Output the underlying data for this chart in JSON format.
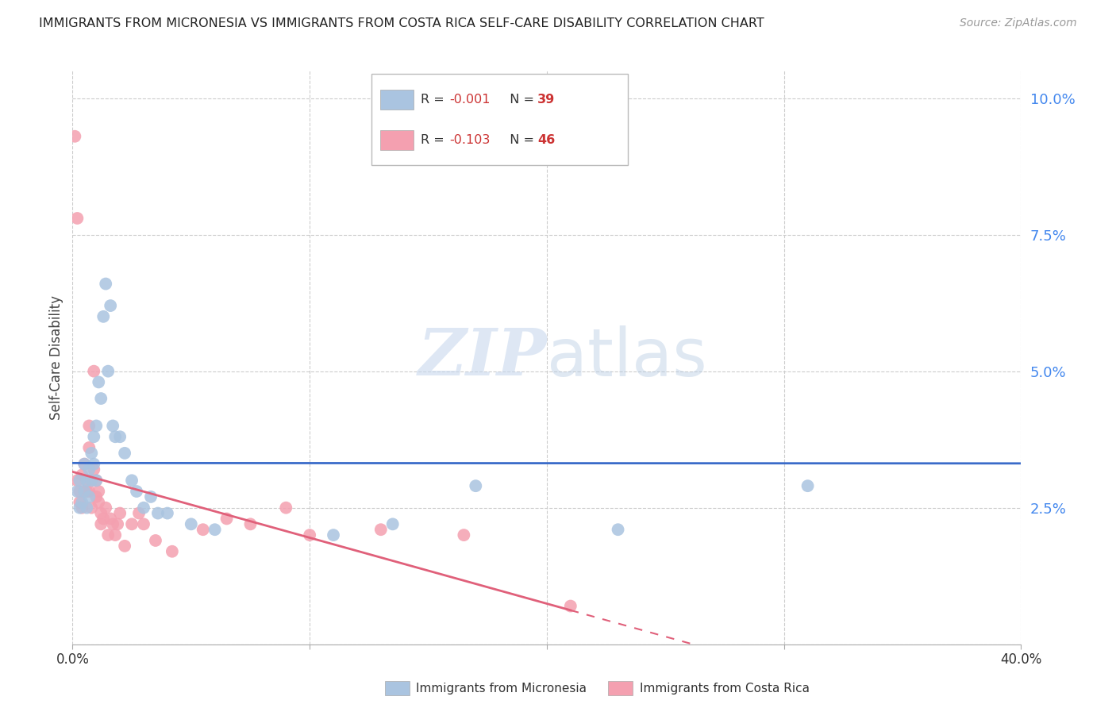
{
  "title": "IMMIGRANTS FROM MICRONESIA VS IMMIGRANTS FROM COSTA RICA SELF-CARE DISABILITY CORRELATION CHART",
  "source": "Source: ZipAtlas.com",
  "ylabel": "Self-Care Disability",
  "xlim": [
    0.0,
    0.4
  ],
  "ylim": [
    0.0,
    0.105
  ],
  "yticks": [
    0.0,
    0.025,
    0.05,
    0.075,
    0.1
  ],
  "ytick_labels": [
    "",
    "2.5%",
    "5.0%",
    "7.5%",
    "10.0%"
  ],
  "xticks": [
    0.0,
    0.1,
    0.2,
    0.3,
    0.4
  ],
  "xtick_labels": [
    "0.0%",
    "",
    "",
    "",
    "40.0%"
  ],
  "micronesia_color": "#aac4e0",
  "costa_rica_color": "#f4a0b0",
  "trend_blue": "#3a6bc9",
  "trend_pink": "#e0607a",
  "micronesia_R": -0.001,
  "micronesia_N": 39,
  "costa_rica_R": -0.103,
  "costa_rica_N": 46,
  "micronesia_x": [
    0.002,
    0.003,
    0.003,
    0.004,
    0.005,
    0.005,
    0.006,
    0.006,
    0.007,
    0.007,
    0.008,
    0.008,
    0.009,
    0.009,
    0.01,
    0.01,
    0.011,
    0.012,
    0.013,
    0.014,
    0.015,
    0.016,
    0.017,
    0.018,
    0.02,
    0.022,
    0.025,
    0.027,
    0.03,
    0.033,
    0.036,
    0.04,
    0.05,
    0.06,
    0.11,
    0.135,
    0.17,
    0.23,
    0.31
  ],
  "micronesia_y": [
    0.028,
    0.03,
    0.025,
    0.026,
    0.028,
    0.033,
    0.03,
    0.025,
    0.032,
    0.027,
    0.035,
    0.03,
    0.038,
    0.033,
    0.04,
    0.03,
    0.048,
    0.045,
    0.06,
    0.066,
    0.05,
    0.062,
    0.04,
    0.038,
    0.038,
    0.035,
    0.03,
    0.028,
    0.025,
    0.027,
    0.024,
    0.024,
    0.022,
    0.021,
    0.02,
    0.022,
    0.029,
    0.021,
    0.029
  ],
  "costa_rica_x": [
    0.001,
    0.002,
    0.002,
    0.003,
    0.003,
    0.004,
    0.004,
    0.005,
    0.005,
    0.006,
    0.006,
    0.007,
    0.007,
    0.007,
    0.008,
    0.008,
    0.009,
    0.009,
    0.01,
    0.01,
    0.011,
    0.011,
    0.012,
    0.012,
    0.013,
    0.014,
    0.015,
    0.016,
    0.017,
    0.018,
    0.019,
    0.02,
    0.022,
    0.025,
    0.028,
    0.03,
    0.035,
    0.042,
    0.055,
    0.065,
    0.075,
    0.09,
    0.1,
    0.13,
    0.165,
    0.21
  ],
  "costa_rica_y": [
    0.093,
    0.078,
    0.03,
    0.026,
    0.028,
    0.031,
    0.025,
    0.033,
    0.028,
    0.028,
    0.03,
    0.04,
    0.036,
    0.028,
    0.03,
    0.025,
    0.05,
    0.032,
    0.027,
    0.03,
    0.028,
    0.026,
    0.022,
    0.024,
    0.023,
    0.025,
    0.02,
    0.023,
    0.022,
    0.02,
    0.022,
    0.024,
    0.018,
    0.022,
    0.024,
    0.022,
    0.019,
    0.017,
    0.021,
    0.023,
    0.022,
    0.025,
    0.02,
    0.021,
    0.02,
    0.007
  ],
  "watermark_zip": "ZIP",
  "watermark_atlas": "atlas",
  "background_color": "#ffffff",
  "grid_color": "#cccccc",
  "legend_text_color": "#333333",
  "legend_value_color": "#cc3333",
  "bottom_label_mic": "Immigrants from Micronesia",
  "bottom_label_cr": "Immigrants from Costa Rica"
}
